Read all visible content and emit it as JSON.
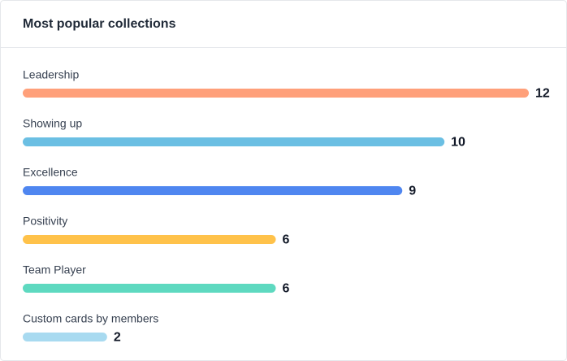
{
  "chart_data": {
    "type": "bar",
    "orientation": "horizontal",
    "title": "Most popular collections",
    "categories": [
      "Leadership",
      "Showing up",
      "Excellence",
      "Positivity",
      "Team Player",
      "Custom cards by members"
    ],
    "values": [
      12,
      10,
      9,
      6,
      6,
      2
    ],
    "colors": [
      "#ffa07a",
      "#6bbfe3",
      "#4f86f0",
      "#ffc24a",
      "#5ed9c0",
      "#a8daf0"
    ]
  }
}
